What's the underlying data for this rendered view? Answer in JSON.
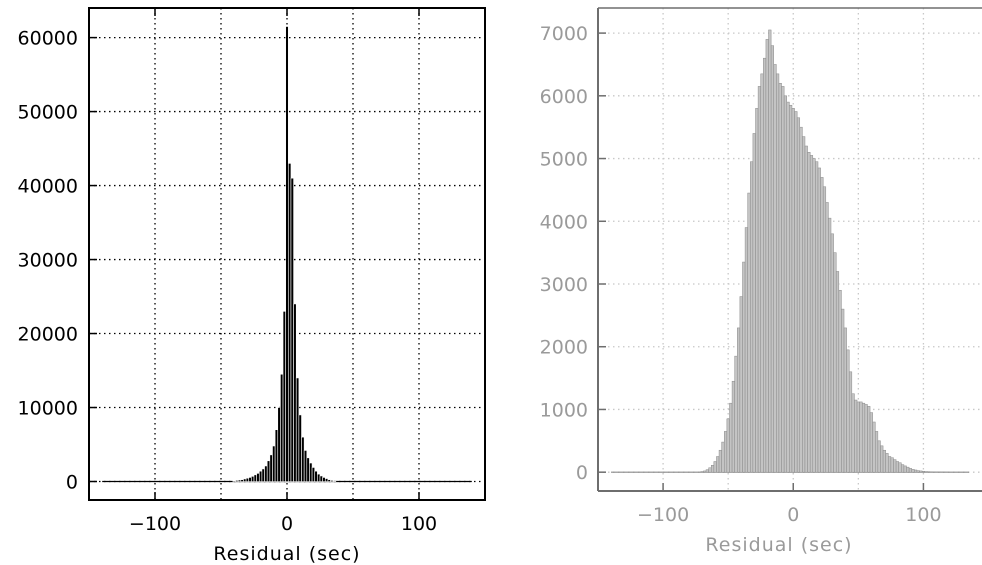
{
  "chart_data": [
    {
      "type": "bar",
      "xlabel": "Residual (sec)",
      "ylabel": "",
      "xlim": [
        -150,
        150
      ],
      "ylim": [
        -2500,
        64000
      ],
      "x_ticks": [
        -100,
        0,
        100
      ],
      "x_tick_labels": [
        "−100",
        "0",
        "100"
      ],
      "y_ticks": [
        0,
        10000,
        20000,
        30000,
        40000,
        50000,
        60000
      ],
      "y_tick_labels": [
        "0",
        "10000",
        "20000",
        "30000",
        "40000",
        "50000",
        "60000"
      ],
      "grid": true,
      "bin_width": 2,
      "x": [
        -40,
        -38,
        -36,
        -34,
        -32,
        -30,
        -28,
        -26,
        -24,
        -22,
        -20,
        -18,
        -16,
        -14,
        -12,
        -10,
        -8,
        -6,
        -4,
        -2,
        0,
        2,
        4,
        6,
        8,
        10,
        12,
        14,
        16,
        18,
        20,
        22,
        24,
        26,
        28,
        30,
        32,
        34,
        36
      ],
      "values": [
        100,
        150,
        200,
        250,
        350,
        450,
        550,
        700,
        900,
        1100,
        1400,
        1700,
        2100,
        2800,
        3600,
        4800,
        7000,
        10000,
        14500,
        23000,
        61500,
        43000,
        41000,
        24000,
        14000,
        9000,
        6000,
        4200,
        3200,
        2500,
        1900,
        1400,
        1000,
        750,
        550,
        400,
        250,
        150,
        50
      ],
      "colors": {
        "bars": "#000000",
        "bar_edge": "#ffffff",
        "frame": "#000000",
        "grid": "#000000",
        "text": "#000000"
      }
    },
    {
      "type": "bar",
      "xlabel": "Residual (sec)",
      "ylabel": "",
      "xlim": [
        -150,
        145
      ],
      "ylim": [
        -300,
        7400
      ],
      "x_ticks": [
        -100,
        0,
        100
      ],
      "x_tick_labels": [
        "−100",
        "0",
        "100"
      ],
      "y_ticks": [
        0,
        1000,
        2000,
        3000,
        4000,
        5000,
        6000,
        7000
      ],
      "y_tick_labels": [
        "0",
        "1000",
        "2000",
        "3000",
        "4000",
        "5000",
        "6000",
        "7000"
      ],
      "grid": true,
      "bin_width": 2,
      "x": [
        -70,
        -68,
        -66,
        -64,
        -62,
        -60,
        -58,
        -56,
        -54,
        -52,
        -50,
        -48,
        -46,
        -44,
        -42,
        -40,
        -38,
        -36,
        -34,
        -32,
        -30,
        -28,
        -26,
        -24,
        -22,
        -20,
        -18,
        -16,
        -14,
        -12,
        -10,
        -8,
        -6,
        -4,
        -2,
        0,
        2,
        4,
        6,
        8,
        10,
        12,
        14,
        16,
        18,
        20,
        22,
        24,
        26,
        28,
        30,
        32,
        34,
        36,
        38,
        40,
        42,
        44,
        46,
        48,
        50,
        52,
        54,
        56,
        58,
        60,
        62,
        64,
        66,
        68,
        70,
        72,
        74,
        76,
        78,
        80,
        82,
        84,
        86,
        88,
        90,
        92,
        94,
        96,
        98,
        100,
        102,
        104,
        106,
        108,
        110,
        112,
        114,
        116,
        118,
        120
      ],
      "values": [
        10,
        20,
        40,
        70,
        110,
        170,
        250,
        350,
        480,
        650,
        850,
        1100,
        1450,
        1850,
        2300,
        2800,
        3350,
        3900,
        4450,
        4950,
        5400,
        5800,
        6150,
        6350,
        6600,
        6900,
        7050,
        6800,
        6500,
        6350,
        6200,
        6150,
        6000,
        5900,
        5850,
        5800,
        5750,
        5650,
        5500,
        5350,
        5200,
        5100,
        5050,
        5000,
        4950,
        4850,
        4700,
        4550,
        4300,
        4050,
        3800,
        3500,
        3200,
        2900,
        2600,
        2300,
        1950,
        1600,
        1250,
        1150,
        1120,
        1120,
        1100,
        1080,
        1050,
        950,
        800,
        650,
        500,
        420,
        350,
        300,
        250,
        230,
        200,
        170,
        150,
        120,
        100,
        80,
        60,
        45,
        35,
        25,
        20,
        15,
        10,
        8,
        6,
        4,
        3,
        2,
        2,
        1,
        1,
        0
      ],
      "colors": {
        "bars": "#c4c4c4",
        "bar_edge": "#8a8a8a",
        "frame": "#6e6e6e",
        "grid": "#c8c8c8",
        "text": "#9a9a9a"
      }
    }
  ]
}
